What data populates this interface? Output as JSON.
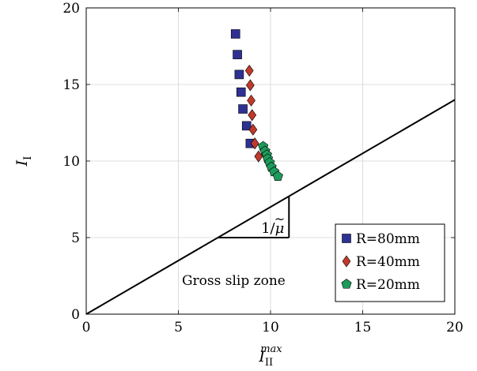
{
  "chart_data": {
    "type": "scatter",
    "xlim": [
      0,
      20
    ],
    "ylim": [
      0,
      20
    ],
    "xticks": [
      0,
      5,
      10,
      15,
      20
    ],
    "yticks": [
      0,
      5,
      10,
      15,
      20
    ],
    "xlabel": {
      "base": "I",
      "sub": "II",
      "sup": "max"
    },
    "ylabel": {
      "base": "I",
      "sub": "I"
    },
    "grid": true,
    "legend_position": "bottom-right",
    "series": [
      {
        "name": "R=80mm",
        "marker": "square",
        "color": "#2E3192",
        "points": [
          [
            8.1,
            18.3
          ],
          [
            8.2,
            16.95
          ],
          [
            8.3,
            15.65
          ],
          [
            8.4,
            14.5
          ],
          [
            8.5,
            13.4
          ],
          [
            8.7,
            12.3
          ],
          [
            8.9,
            11.15
          ]
        ]
      },
      {
        "name": "R=40mm",
        "marker": "diamond",
        "color": "#C0392B",
        "points": [
          [
            8.85,
            15.9
          ],
          [
            8.9,
            14.95
          ],
          [
            8.95,
            13.95
          ],
          [
            9.0,
            13.0
          ],
          [
            9.05,
            12.05
          ],
          [
            9.15,
            11.15
          ],
          [
            9.35,
            10.3
          ]
        ]
      },
      {
        "name": "R=20mm",
        "marker": "pentagon",
        "color": "#1E9A5A",
        "points": [
          [
            9.6,
            10.95
          ],
          [
            9.7,
            10.65
          ],
          [
            9.8,
            10.4
          ],
          [
            9.85,
            10.15
          ],
          [
            9.95,
            9.9
          ],
          [
            10.05,
            9.6
          ],
          [
            10.2,
            9.3
          ],
          [
            10.4,
            9.0
          ]
        ]
      }
    ],
    "reference_line": {
      "from": [
        0,
        0
      ],
      "to": [
        20,
        14
      ]
    },
    "slope_triangle": {
      "x_start": 7.15,
      "x_end": 11.0,
      "y_base": 5.0,
      "label": {
        "num": "1/",
        "mu": "μ",
        "tilde": "~"
      }
    },
    "annotations": [
      {
        "text": "Gross slip zone",
        "x": 8.0,
        "y": 1.9
      }
    ]
  }
}
